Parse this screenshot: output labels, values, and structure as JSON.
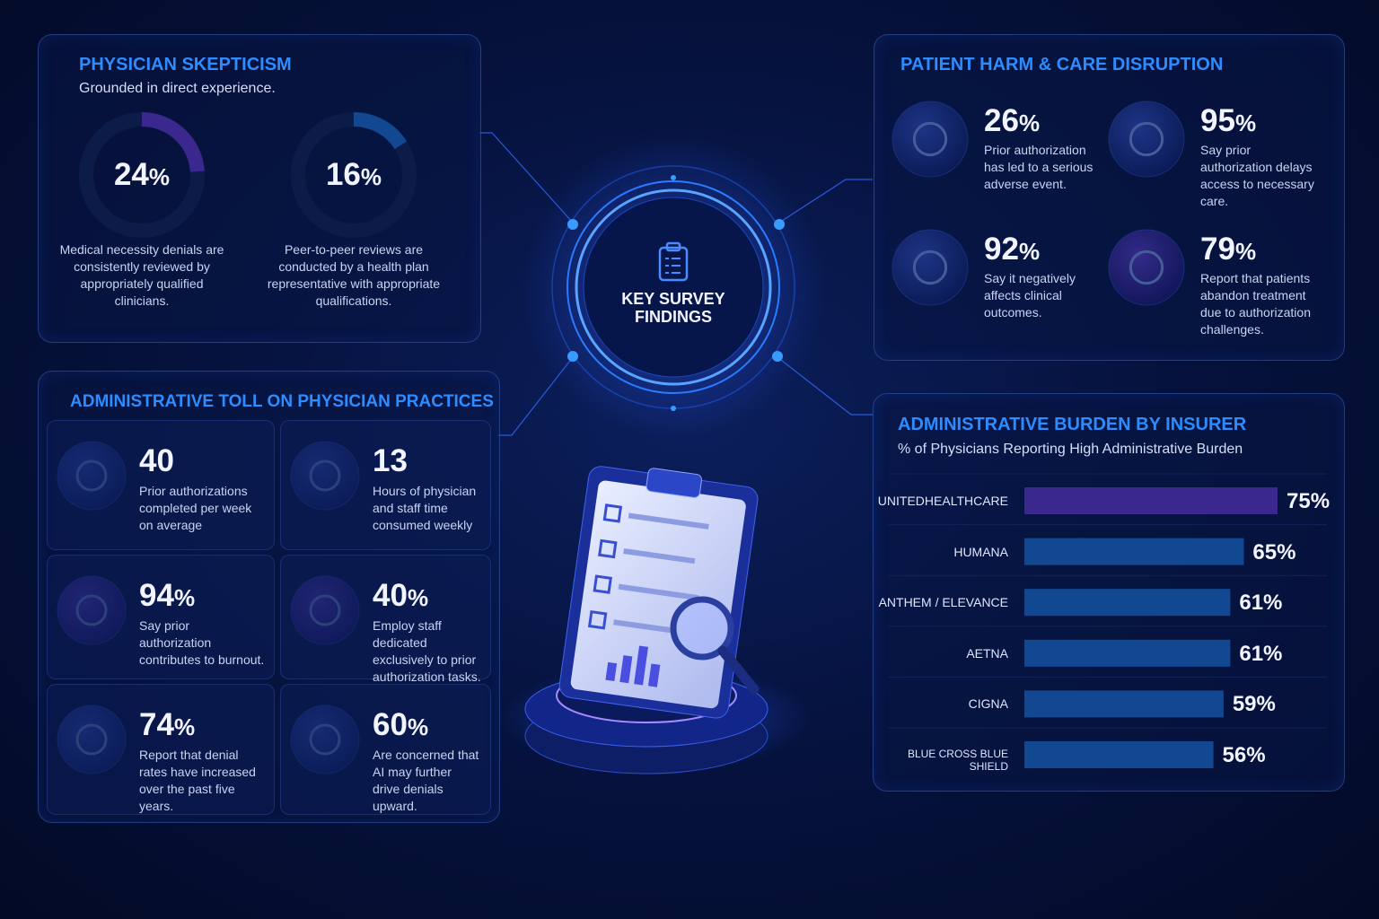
{
  "center": {
    "title": "KEY SURVEY FINDINGS"
  },
  "skepticism": {
    "title": "PHYSICIAN SKEPTICISM",
    "subtitle": "Grounded in direct experience.",
    "items": [
      {
        "value": 24,
        "unit": "%",
        "text": "Medical necessity denials are consistently reviewed by appropriately qualified clinicians.",
        "color": "#7b3fe8"
      },
      {
        "value": 16,
        "unit": "%",
        "text": "Peer-to-peer reviews are conducted by a health plan representative with appropriate qualifications.",
        "color": "#1f86f0"
      }
    ]
  },
  "admin_toll": {
    "title": "ADMINISTRATIVE TOLL ON PHYSICIAN PRACTICES",
    "items": [
      {
        "value": 40,
        "text": "Prior authorizations completed per week on average"
      },
      {
        "value": 13,
        "text": "Hours of physician and staff time consumed weekly"
      },
      {
        "value": 94,
        "unit": "%",
        "text": "Say prior authorization contributes to burnout."
      },
      {
        "value": 40,
        "unit": "%",
        "text": "Employ staff dedicated exclusively to prior authorization tasks."
      },
      {
        "value": 74,
        "unit": "%",
        "text": "Report that denial rates have increased over the past five years."
      },
      {
        "value": 60,
        "unit": "%",
        "text": "Are concerned that AI may further drive denials upward."
      }
    ]
  },
  "patient_harm": {
    "title": "PATIENT HARM & CARE DISRUPTION",
    "items": [
      {
        "value": 26,
        "unit": "%",
        "text": "Prior authorization has led to a serious adverse event."
      },
      {
        "value": 95,
        "unit": "%",
        "text": "Say prior authorization delays access to necessary care."
      },
      {
        "value": 92,
        "unit": "%",
        "text": "Say it negatively affects clinical outcomes."
      },
      {
        "value": 79,
        "unit": "%",
        "text": "Report that patients abandon treatment due to authorization challenges."
      }
    ]
  },
  "chart_data": {
    "type": "bar",
    "orientation": "horizontal",
    "title": "ADMINISTRATIVE BURDEN BY INSURER",
    "subtitle": "% of Physicians Reporting High Administrative Burden",
    "categories": [
      "UNITEDHEALTHCARE",
      "HUMANA",
      "ANTHEM / ELEVANCE",
      "AETNA",
      "CIGNA",
      "BLUE CROSS BLUE SHIELD"
    ],
    "values": [
      75,
      65,
      61,
      61,
      59,
      56
    ],
    "value_labels": [
      "75%",
      "65%",
      "61%",
      "61%",
      "59%",
      "56%"
    ],
    "colors": [
      "#7b3fe8",
      "#1f86f0",
      "#1f86f0",
      "#1f86f0",
      "#1f86f0",
      "#1f86f0"
    ]
  }
}
